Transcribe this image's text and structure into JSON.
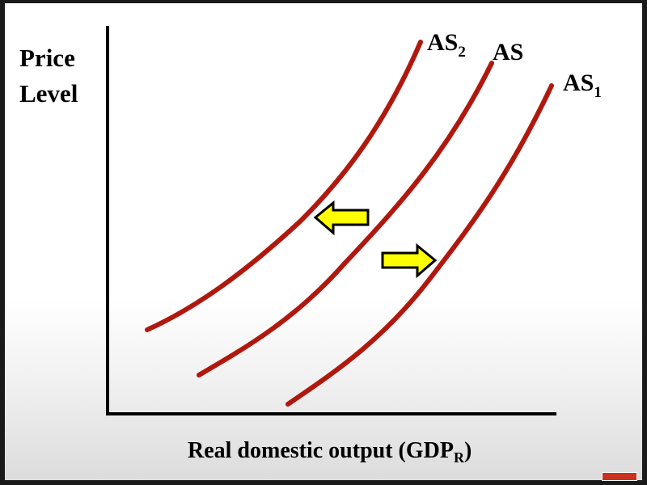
{
  "diagram": {
    "y_axis_label_line1": "Price",
    "y_axis_label_line2": "Level",
    "x_axis_label_main": "Real domestic output (GDP",
    "x_axis_label_sub": "R",
    "x_axis_label_close": ")",
    "curves": [
      {
        "label": "AS",
        "sub": "2",
        "color": "#b0180e"
      },
      {
        "label": "AS",
        "sub": "",
        "color": "#b0180e"
      },
      {
        "label": "AS",
        "sub": "1",
        "color": "#b0180e"
      }
    ],
    "arrows": [
      {
        "direction": "left",
        "color": "#ffff00"
      },
      {
        "direction": "right",
        "color": "#ffff00"
      }
    ]
  }
}
